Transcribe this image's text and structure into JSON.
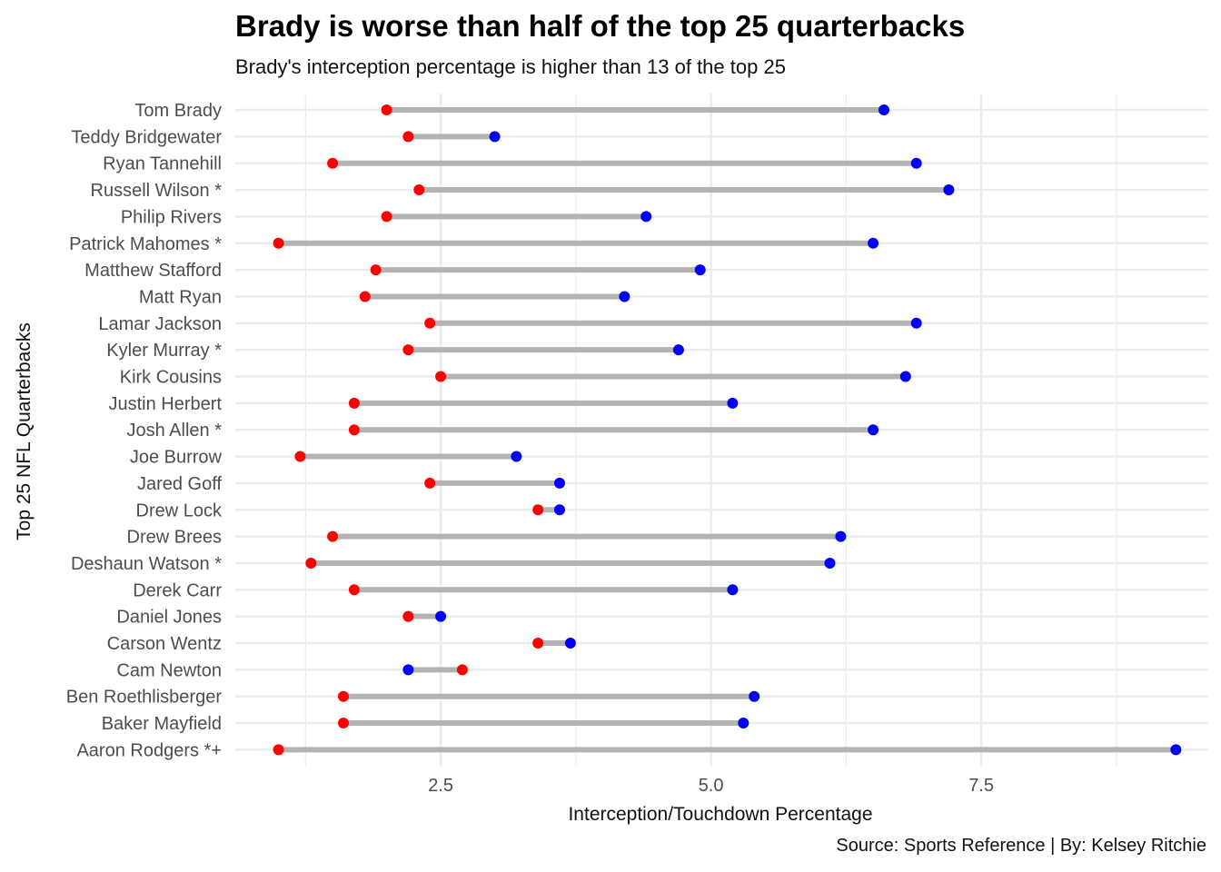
{
  "chart_data": {
    "type": "dumbbell",
    "title": "Brady is worse than half of the top 25 quarterbacks",
    "subtitle": "Brady's interception percentage is higher than 13 of the top 25",
    "caption": "Source: Sports Reference | By: Kelsey Ritchie",
    "xlabel": "Interception/Touchdown Percentage",
    "ylabel": "Top 25 NFL Quarterbacks",
    "xlim": [
      0.6,
      9.6
    ],
    "xticks": [
      2.5,
      5.0,
      7.5
    ],
    "xtick_labels": [
      "2.5",
      "5.0",
      "7.5"
    ],
    "grid": true,
    "colors": {
      "interception": "#ff0000",
      "touchdown": "#0000ff",
      "segment": "#b3b3b3",
      "grid": "#ebebeb"
    },
    "series": [
      {
        "name": "interception",
        "color": "#ff0000"
      },
      {
        "name": "touchdown",
        "color": "#0000ff"
      }
    ],
    "quarterbacks": [
      {
        "name": "Tom Brady",
        "interception": 2.0,
        "touchdown": 6.6
      },
      {
        "name": "Teddy Bridgewater",
        "interception": 2.2,
        "touchdown": 3.0
      },
      {
        "name": "Ryan Tannehill",
        "interception": 1.5,
        "touchdown": 6.9
      },
      {
        "name": "Russell Wilson *",
        "interception": 2.3,
        "touchdown": 7.2
      },
      {
        "name": "Philip Rivers",
        "interception": 2.0,
        "touchdown": 4.4
      },
      {
        "name": "Patrick Mahomes *",
        "interception": 1.0,
        "touchdown": 6.5
      },
      {
        "name": "Matthew Stafford",
        "interception": 1.9,
        "touchdown": 4.9
      },
      {
        "name": "Matt Ryan",
        "interception": 1.8,
        "touchdown": 4.2
      },
      {
        "name": "Lamar Jackson",
        "interception": 2.4,
        "touchdown": 6.9
      },
      {
        "name": "Kyler Murray *",
        "interception": 2.2,
        "touchdown": 4.7
      },
      {
        "name": "Kirk Cousins",
        "interception": 2.5,
        "touchdown": 6.8
      },
      {
        "name": "Justin Herbert",
        "interception": 1.7,
        "touchdown": 5.2
      },
      {
        "name": "Josh Allen *",
        "interception": 1.7,
        "touchdown": 6.5
      },
      {
        "name": "Joe Burrow",
        "interception": 1.2,
        "touchdown": 3.2
      },
      {
        "name": "Jared Goff",
        "interception": 2.4,
        "touchdown": 3.6
      },
      {
        "name": "Drew Lock",
        "interception": 3.4,
        "touchdown": 3.6
      },
      {
        "name": "Drew Brees",
        "interception": 1.5,
        "touchdown": 6.2
      },
      {
        "name": "Deshaun Watson *",
        "interception": 1.3,
        "touchdown": 6.1
      },
      {
        "name": "Derek Carr",
        "interception": 1.7,
        "touchdown": 5.2
      },
      {
        "name": "Daniel Jones",
        "interception": 2.2,
        "touchdown": 2.5
      },
      {
        "name": "Carson Wentz",
        "interception": 3.4,
        "touchdown": 3.7
      },
      {
        "name": "Cam Newton",
        "interception": 2.7,
        "touchdown": 2.2
      },
      {
        "name": "Ben Roethlisberger",
        "interception": 1.6,
        "touchdown": 5.4
      },
      {
        "name": "Baker Mayfield",
        "interception": 1.6,
        "touchdown": 5.3
      },
      {
        "name": "Aaron Rodgers *+",
        "interception": 1.0,
        "touchdown": 9.3
      }
    ]
  }
}
